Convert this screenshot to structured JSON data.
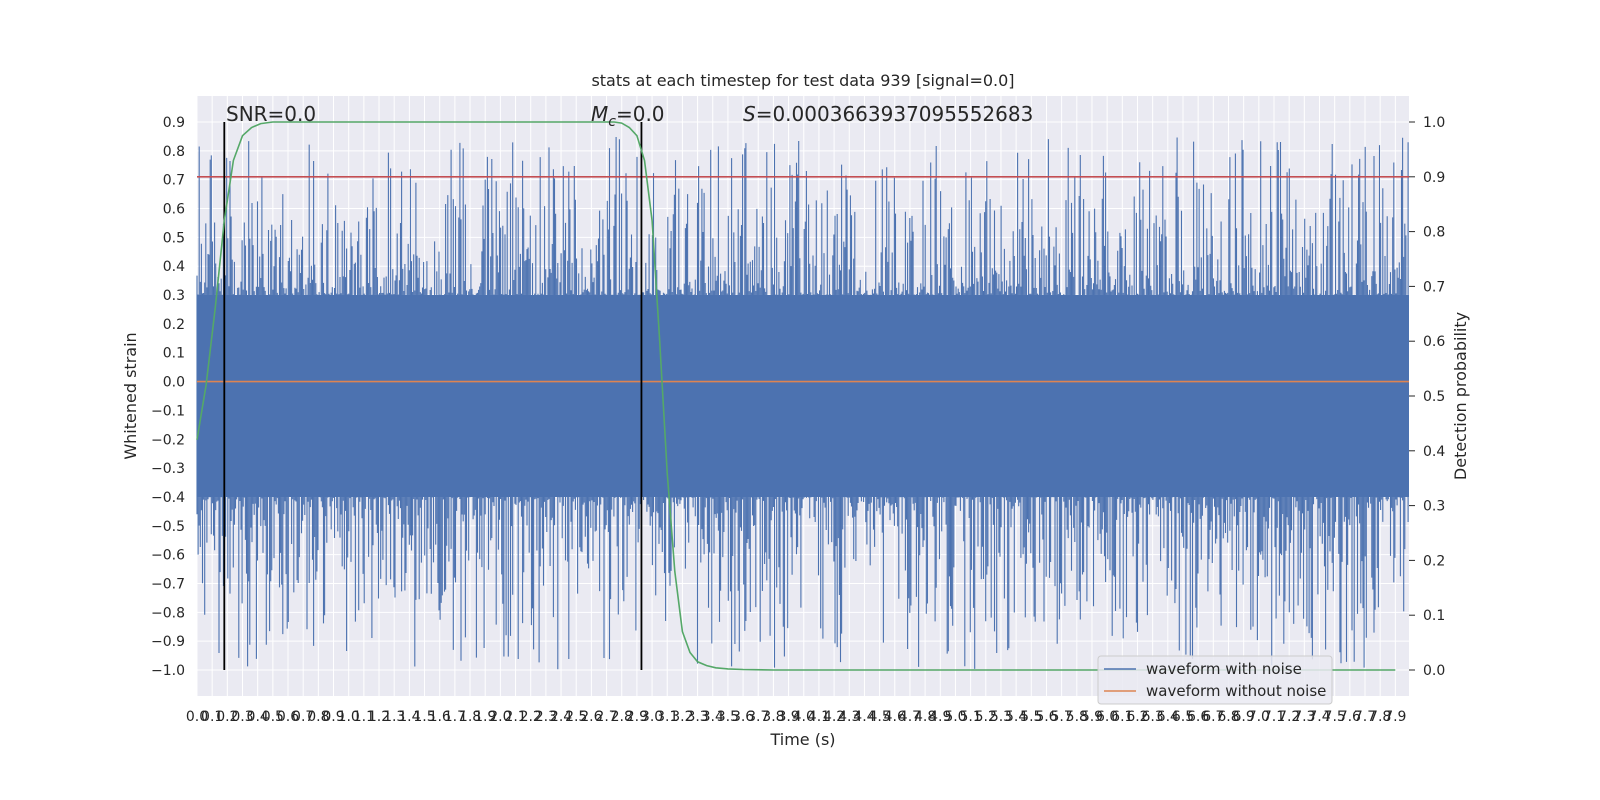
{
  "chart_data": {
    "type": "line",
    "title": "stats at each timestep for test data 939 [signal=0.0]",
    "xlabel": "Time (s)",
    "ylabel": "Whitened strain",
    "y2label": "Detection probability",
    "xlim": [
      0.0,
      7.99
    ],
    "ylim": [
      -1.0,
      0.9
    ],
    "y2lim": [
      0.0,
      1.0
    ],
    "x_ticks": [
      "0.0",
      "0.1",
      "0.2",
      "0.3",
      "0.4",
      "0.5",
      "0.6",
      "0.7",
      "0.8",
      "0.9",
      "1.0",
      "1.1",
      "1.2",
      "1.3",
      "1.4",
      "1.5",
      "1.6",
      "1.7",
      "1.8",
      "1.9",
      "2.0",
      "2.1",
      "2.2",
      "2.3",
      "2.4",
      "2.5",
      "2.6",
      "2.7",
      "2.8",
      "2.9",
      "3.0",
      "3.1",
      "3.2",
      "3.3",
      "3.4",
      "3.5",
      "3.6",
      "3.7",
      "3.8",
      "3.9",
      "4.0",
      "4.1",
      "4.2",
      "4.3",
      "4.4",
      "4.5",
      "4.6",
      "4.7",
      "4.8",
      "4.9",
      "5.0",
      "5.1",
      "5.2",
      "5.3",
      "5.4",
      "5.5",
      "5.6",
      "5.7",
      "5.8",
      "5.9",
      "6.0",
      "6.1",
      "6.2",
      "6.3",
      "6.4",
      "6.5",
      "6.6",
      "6.7",
      "6.8",
      "6.9",
      "7.0",
      "7.1",
      "7.2",
      "7.3",
      "7.4",
      "7.5",
      "7.6",
      "7.7",
      "7.8",
      "7.9"
    ],
    "y_ticks": [
      "0.9",
      "0.8",
      "0.7",
      "0.6",
      "0.5",
      "0.4",
      "0.3",
      "0.2",
      "0.1",
      "0.0",
      "−0.1",
      "−0.2",
      "−0.3",
      "−0.4",
      "−0.5",
      "−0.6",
      "−0.7",
      "−0.8",
      "−0.9",
      "−1.0"
    ],
    "y2_ticks": [
      "0.0",
      "0.1",
      "0.2",
      "0.3",
      "0.4",
      "0.5",
      "0.6",
      "0.7",
      "0.8",
      "0.9",
      "1.0"
    ],
    "threshold": 0.9,
    "vlines": [
      0.18,
      2.93
    ],
    "annotations": {
      "snr": "SNR=0.0",
      "mc_symbol": "M",
      "mc_sub": "c",
      "mc_value": "=0.0",
      "s_symbol": "S",
      "s_value": "=0.0003663937095552683"
    },
    "legend_position": "lower right",
    "grid": true,
    "series": [
      {
        "name": "waveform with noise",
        "color": "#4c72b0",
        "envelope_upper": 0.3,
        "envelope_lower": -0.4,
        "peak_max": 0.85,
        "peak_min": -1.0
      },
      {
        "name": "waveform without noise",
        "color": "#dd8452",
        "values_constant": 0.0
      },
      {
        "color": "#55a868",
        "axis": "right",
        "x": [
          0.0,
          0.06,
          0.12,
          0.18,
          0.24,
          0.3,
          0.36,
          0.42,
          0.5,
          0.6,
          0.8,
          1.5,
          2.5,
          2.75,
          2.8,
          2.85,
          2.9,
          2.95,
          3.0,
          3.05,
          3.1,
          3.15,
          3.2,
          3.25,
          3.3,
          3.36,
          3.42,
          3.5,
          3.6,
          3.8,
          4.5,
          6.0,
          7.9
        ],
        "values": [
          0.42,
          0.52,
          0.66,
          0.82,
          0.93,
          0.975,
          0.99,
          0.997,
          1.0,
          1.0,
          1.0,
          1.0,
          1.0,
          1.0,
          0.998,
          0.99,
          0.975,
          0.93,
          0.82,
          0.6,
          0.36,
          0.18,
          0.07,
          0.032,
          0.015,
          0.008,
          0.004,
          0.002,
          0.001,
          0.0,
          0.0,
          0.0,
          0.0
        ]
      },
      {
        "color": "#c44e52",
        "axis": "right",
        "values_constant": 0.9
      }
    ]
  },
  "colors": {
    "plot_bg": "#eaeaf2",
    "grid": "#ffffff",
    "noise": "#4c72b0",
    "clean": "#dd8452",
    "prob": "#55a868",
    "threshold": "#c44e52",
    "vline": "#000000"
  }
}
